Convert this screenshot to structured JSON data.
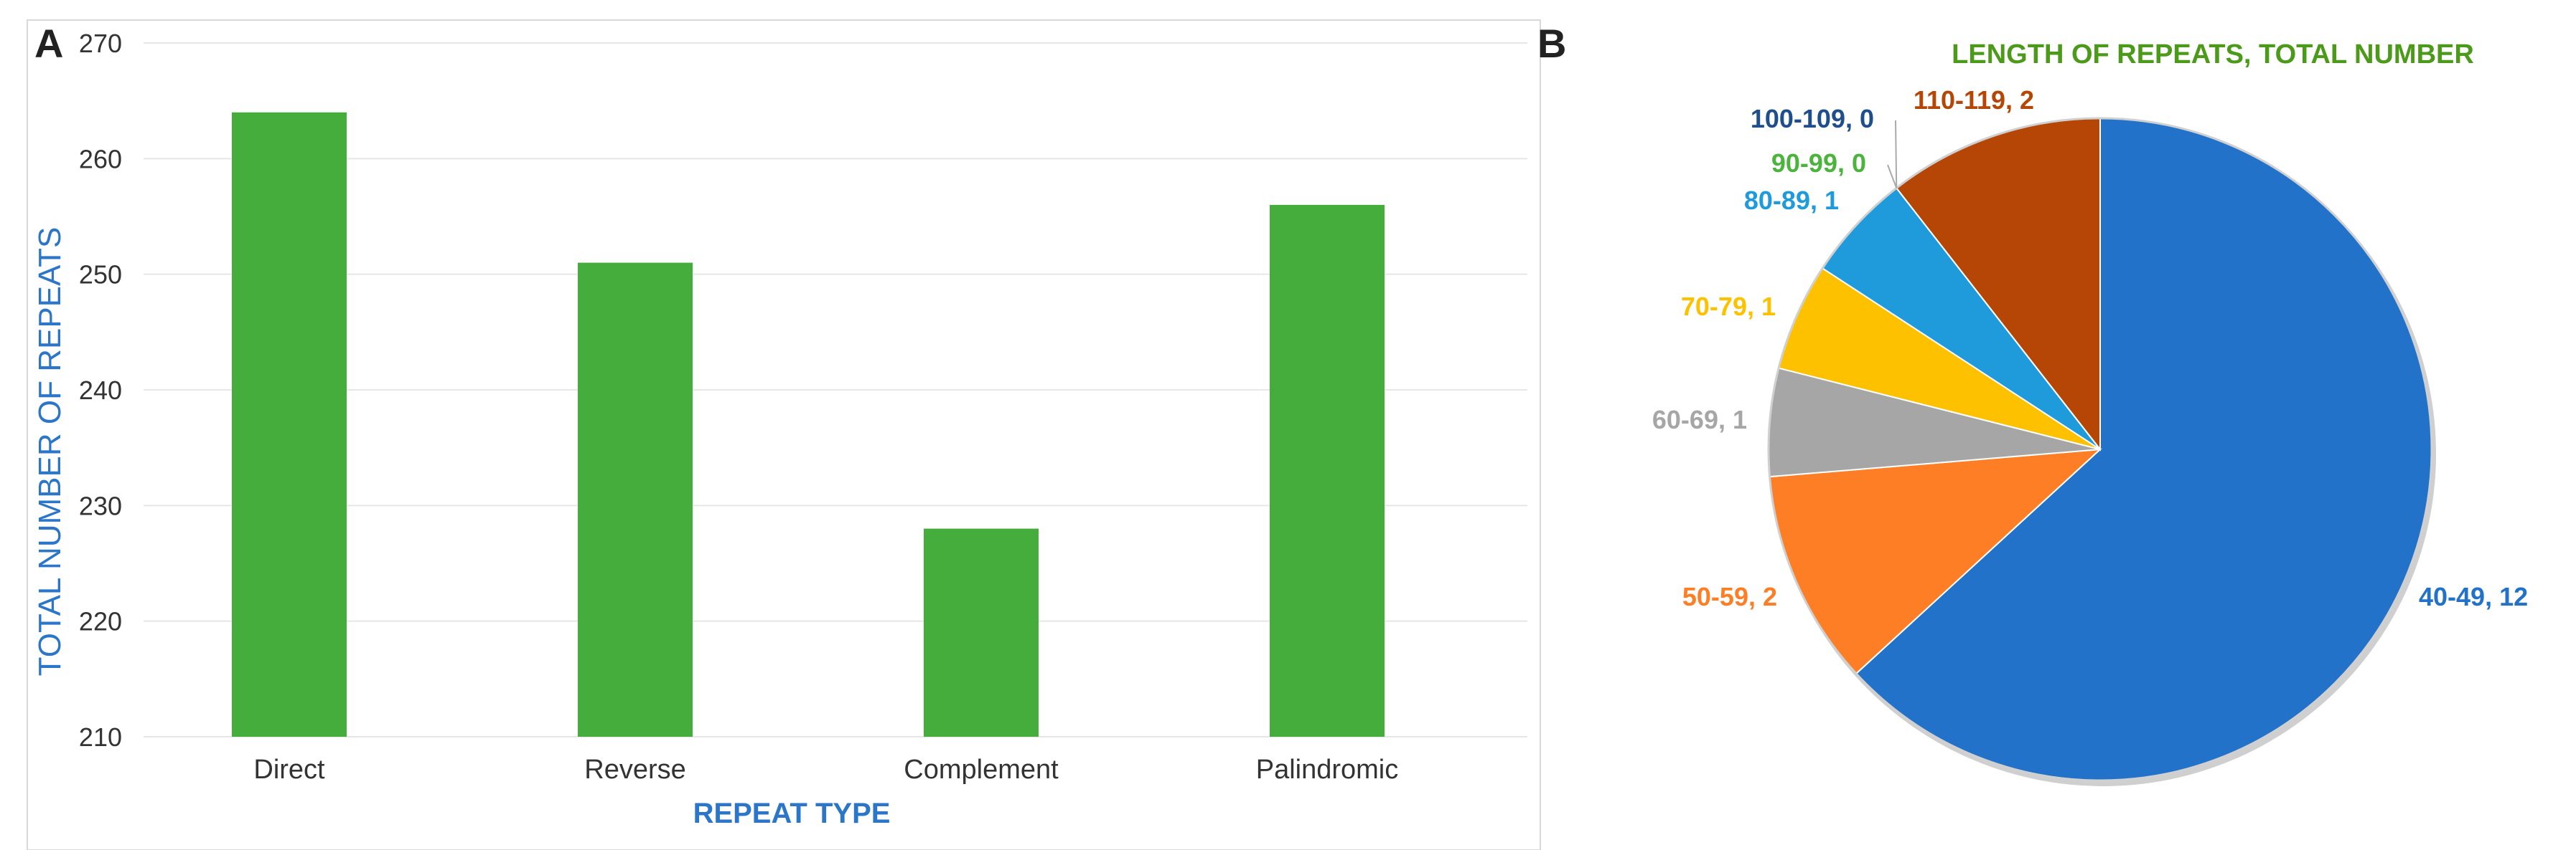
{
  "panels": {
    "a_label": "A",
    "b_label": "B"
  },
  "colors": {
    "bar": "#45ad3c",
    "axis_title": "#2b76c8",
    "tick": "#333333",
    "grid": "#e6e6e6",
    "pie_title": "#4c9a1a"
  },
  "chart_data": [
    {
      "type": "bar",
      "title": "",
      "categories": [
        "Direct",
        "Reverse",
        "Complement",
        "Palindromic"
      ],
      "values": [
        264,
        251,
        228,
        256
      ],
      "xlabel": "REPEAT TYPE",
      "ylabel": "TOTAL NUMBER OF REPEATS",
      "ylim": [
        210,
        270
      ],
      "yticks": [
        210,
        220,
        230,
        240,
        250,
        260,
        270
      ],
      "grid": true
    },
    {
      "type": "pie",
      "title": "LENGTH OF REPEATS, TOTAL NUMBER",
      "slices": [
        {
          "label": "40-49",
          "value": 12,
          "display": "40-49, 12",
          "color": "#2272c9"
        },
        {
          "label": "50-59",
          "value": 2,
          "display": "50-59, 2",
          "color": "#fd7e25"
        },
        {
          "label": "60-69",
          "value": 1,
          "display": "60-69, 1",
          "color": "#a6a6a6"
        },
        {
          "label": "70-79",
          "value": 1,
          "display": "70-79, 1",
          "color": "#fec100"
        },
        {
          "label": "80-89",
          "value": 1,
          "display": "80-89, 1",
          "color": "#1f9bdc"
        },
        {
          "label": "90-99",
          "value": 0,
          "display": "90-99, 0",
          "color": "#4bb43c"
        },
        {
          "label": "100-109",
          "value": 0,
          "display": "100-109, 0",
          "color": "#1f4e8c"
        },
        {
          "label": "110-119",
          "value": 2,
          "display": "110-119, 2",
          "color": "#b54605"
        }
      ]
    }
  ]
}
